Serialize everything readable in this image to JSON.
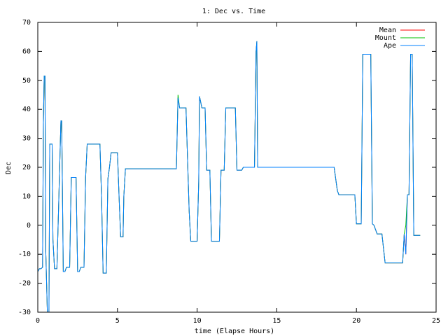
{
  "chart_data": {
    "type": "line",
    "title": "1: Dec vs. Time",
    "x_label": "time (Elapse Hours)",
    "y_label": "Dec",
    "xlim": [
      0,
      25
    ],
    "ylim": [
      -30,
      70
    ],
    "xticks": [
      0,
      5,
      10,
      15,
      20,
      25
    ],
    "yticks": [
      -30,
      -20,
      -10,
      0,
      10,
      20,
      30,
      40,
      50,
      60,
      70
    ],
    "legend": "top-right",
    "x": [
      0,
      0.1,
      0.2,
      0.3,
      0.35,
      0.4,
      0.45,
      0.5,
      0.6,
      0.7,
      0.75,
      0.9,
      0.95,
      1.05,
      1.2,
      1.3,
      1.45,
      1.5,
      1.6,
      1.7,
      1.8,
      2.0,
      2.1,
      2.4,
      2.5,
      2.6,
      2.7,
      2.9,
      3.0,
      3.1,
      3.9,
      4.0,
      4.1,
      4.3,
      4.4,
      4.5,
      4.6,
      5.0,
      5.1,
      5.2,
      5.35,
      5.4,
      5.5,
      8.7,
      8.8,
      8.9,
      9.3,
      9.5,
      9.6,
      10.0,
      10.1,
      10.15,
      10.3,
      10.5,
      10.6,
      10.8,
      10.9,
      11.4,
      11.5,
      11.7,
      11.8,
      12.4,
      12.5,
      12.8,
      12.9,
      13.6,
      13.7,
      13.75,
      13.8,
      18.6,
      18.8,
      18.9,
      19.9,
      20.0,
      20.3,
      20.4,
      20.9,
      21.0,
      21.1,
      21.3,
      21.6,
      21.8,
      22.9,
      23.0,
      23.1,
      23.2,
      23.3,
      23.4,
      23.5,
      23.6,
      24.0
    ],
    "series": [
      {
        "name": "Mean",
        "color": "#ff0000",
        "values": [
          -16,
          -15,
          -15,
          -14.5,
          35,
          51.5,
          51.5,
          -9,
          -30,
          -30,
          28,
          28,
          -5,
          -15,
          -15,
          5,
          36,
          36,
          -16,
          -16,
          -14.5,
          -14.5,
          16.5,
          16.5,
          -16,
          -16,
          -14.5,
          -14.5,
          16.5,
          28,
          28,
          10,
          -16.5,
          -16.5,
          16,
          20,
          25,
          25,
          10,
          -4,
          -4,
          10,
          19.5,
          19.5,
          44,
          40.5,
          40.5,
          5,
          -5.5,
          -5.5,
          15,
          44.5,
          40.5,
          40.5,
          19,
          19,
          -5.5,
          -5.5,
          19,
          19,
          40.5,
          40.5,
          19,
          19,
          20,
          20,
          60,
          63.5,
          20,
          20,
          12,
          10.5,
          10.5,
          0.5,
          0.5,
          59,
          59,
          0.5,
          0,
          -3,
          -3,
          -13,
          -13,
          -3,
          -10,
          10.5,
          10.5,
          59,
          59,
          -3.5,
          -3.5
        ]
      },
      {
        "name": "Mount",
        "color": "#00c000",
        "values": [
          -16,
          -15,
          -15,
          -14.5,
          35,
          51.5,
          51.5,
          -9,
          -30,
          -30,
          28,
          28,
          -5,
          -15,
          -15,
          5,
          36,
          36,
          -16,
          -16,
          -14.5,
          -14.5,
          16.5,
          16.5,
          -16,
          -16,
          -14.5,
          -14.5,
          16.5,
          28,
          28,
          10,
          -16.5,
          -16.5,
          16,
          20,
          25,
          25,
          10,
          -4,
          -4,
          10,
          19.5,
          19.5,
          45,
          40.5,
          40.5,
          5,
          -5.5,
          -5.5,
          15,
          44.5,
          40.5,
          40.5,
          19,
          19,
          -5.5,
          -5.5,
          19,
          19,
          40.5,
          40.5,
          19,
          19,
          20,
          20,
          60,
          63.5,
          20,
          20,
          12,
          10.5,
          10.5,
          0.5,
          0.5,
          59,
          59,
          0.5,
          0,
          -3,
          -3,
          -13,
          -13,
          -3,
          0,
          10.5,
          10.5,
          59,
          59,
          -3.5,
          -3.5
        ]
      },
      {
        "name": "Ape",
        "color": "#0080ff",
        "values": [
          -16,
          -15,
          -15,
          -14.5,
          35,
          51.5,
          51.5,
          -9,
          -30,
          -30,
          28,
          28,
          -5,
          -15,
          -15,
          5,
          36,
          36,
          -16,
          -16,
          -14.5,
          -14.5,
          16.5,
          16.5,
          -16,
          -16,
          -14.5,
          -14.5,
          16.5,
          28,
          28,
          10,
          -16.5,
          -16.5,
          16,
          20,
          25,
          25,
          10,
          -4,
          -4,
          10,
          19.5,
          19.5,
          44,
          40.5,
          40.5,
          5,
          -5.5,
          -5.5,
          15,
          44.5,
          40.5,
          40.5,
          19,
          19,
          -5.5,
          -5.5,
          19,
          19,
          40.5,
          40.5,
          19,
          19,
          20,
          20,
          60,
          63.5,
          20,
          20,
          12,
          10.5,
          10.5,
          0.5,
          0.5,
          59,
          59,
          0.5,
          0,
          -3,
          -3,
          -13,
          -13,
          -3,
          -10,
          10.5,
          10.5,
          59,
          59,
          -3.5,
          -3.5
        ]
      }
    ]
  }
}
